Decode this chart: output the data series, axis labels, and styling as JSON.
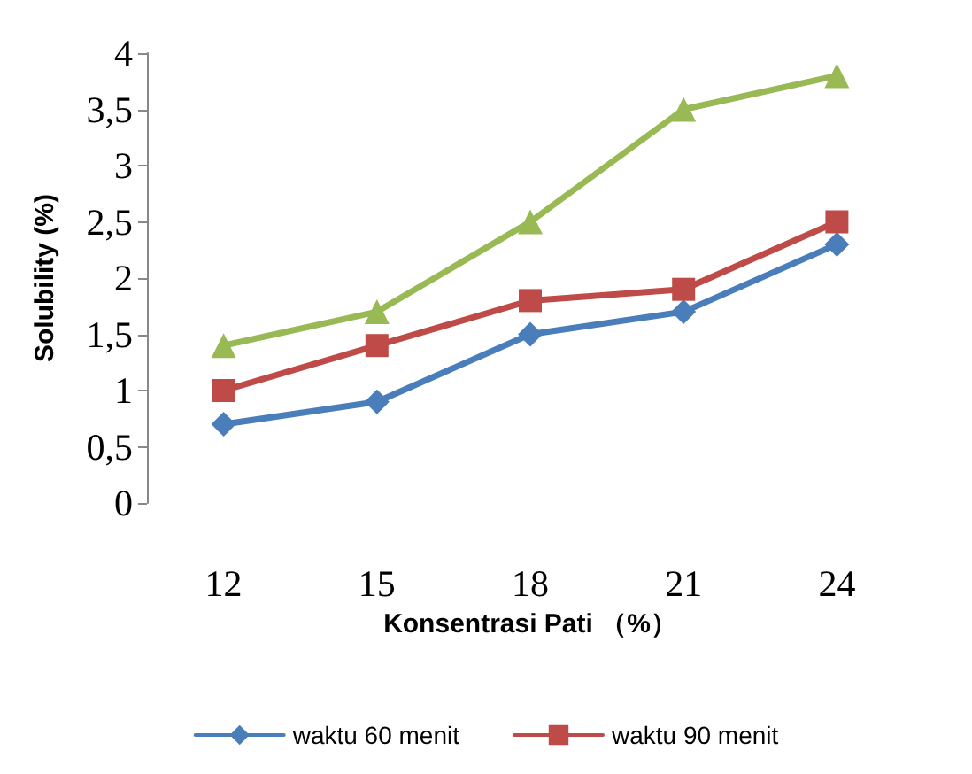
{
  "chart_data": {
    "type": "line",
    "xlabel": "Konsentrasi Pati （%）",
    "ylabel": "Solubility (%)",
    "categories": [
      "12",
      "15",
      "18",
      "21",
      "24"
    ],
    "ylim": [
      0,
      4
    ],
    "yticks": [
      0,
      {
        "value": 0.5,
        "label": "0,5"
      },
      1,
      {
        "value": 1.5,
        "label": "1,5"
      },
      2,
      {
        "value": 2.5,
        "label": "2,5"
      },
      3,
      {
        "value": 3.5,
        "label": "3,5"
      },
      4
    ],
    "grid": false,
    "legend": "bottom",
    "series": [
      {
        "name": "waktu 60 menit",
        "color": "#4a7ebb",
        "marker": "diamond",
        "values": [
          0.7,
          0.9,
          1.5,
          1.7,
          2.3
        ]
      },
      {
        "name": "waktu 90 menit",
        "color": "#be4b48",
        "marker": "square",
        "values": [
          1.0,
          1.4,
          1.8,
          1.9,
          2.5
        ]
      },
      {
        "color": "#98b954",
        "marker": "triangle",
        "values": [
          1.4,
          1.7,
          2.5,
          3.5,
          3.8
        ]
      }
    ]
  }
}
